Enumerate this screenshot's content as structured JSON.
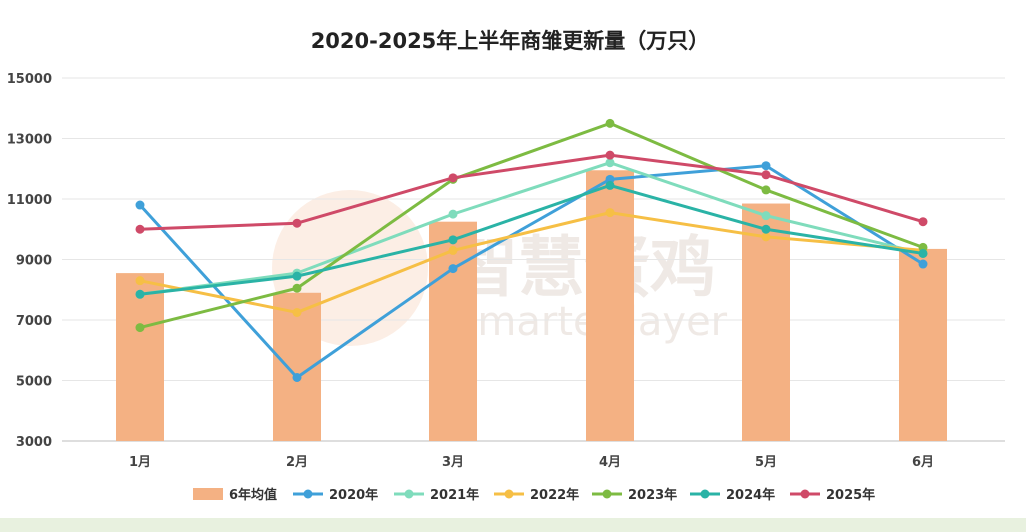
{
  "chart_data": {
    "type": "bar+line",
    "title": "2020-2025年上半年商雏更新量（万只）",
    "categories": [
      "1月",
      "2月",
      "3月",
      "4月",
      "5月",
      "6月"
    ],
    "ylim": [
      3000,
      15000
    ],
    "yticks": [
      "3000",
      "5000",
      "7000",
      "9000",
      "11000",
      "13000",
      "15000"
    ],
    "grid": true,
    "legend_position": "bottom",
    "bar_series": {
      "name": "6年均值",
      "color": "#f4b183",
      "values": [
        8550,
        7900,
        10250,
        11950,
        10850,
        9350
      ]
    },
    "line_series": [
      {
        "name": "2020年",
        "color": "#3fa0d9",
        "values": [
          10800,
          5100,
          8700,
          11650,
          12100,
          8850
        ]
      },
      {
        "name": "2021年",
        "color": "#7fdcbc",
        "values": [
          7850,
          8550,
          10500,
          12200,
          10450,
          9200
        ]
      },
      {
        "name": "2022年",
        "color": "#f6bf45",
        "values": [
          8300,
          7250,
          9300,
          10550,
          9750,
          9300
        ]
      },
      {
        "name": "2023年",
        "color": "#7dbb42",
        "values": [
          6750,
          8050,
          11650,
          13500,
          11300,
          9400
        ]
      },
      {
        "name": "2024年",
        "color": "#2ab3a6",
        "values": [
          7850,
          8450,
          9650,
          11450,
          10000,
          9200
        ]
      },
      {
        "name": "2025年",
        "color": "#cf4a68",
        "values": [
          10000,
          10200,
          11700,
          12450,
          11800,
          10250
        ]
      }
    ]
  },
  "watermark": {
    "brand_cn": "智慧蛋鸡",
    "brand_en": "Smarter layer"
  }
}
